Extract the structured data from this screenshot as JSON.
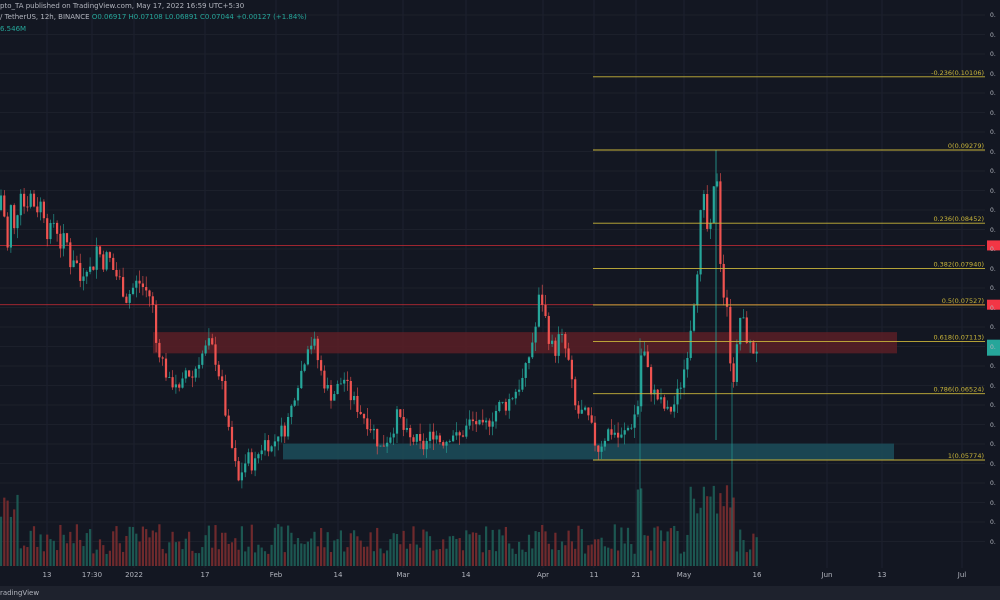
{
  "header": {
    "publish_line": "pto_TA published on TradingView.com, May 17, 2022 16:59 UTC+5:30",
    "symbol": "/ TetherUS, 12h, BINANCE",
    "ohlc": "O0.06917  H0.07108  L0.06891  C0.07044  +0.00127 (+1.84%)",
    "volume": "6.546M"
  },
  "footer": {
    "brand": "radingView"
  },
  "colors": {
    "background": "#131722",
    "up": "#26a69a",
    "down": "#ef5350",
    "fib": "#c9b53a",
    "resistance_line": "#b22833",
    "resistance_zone": "#5a1f26",
    "support_zone": "#1c4a58",
    "price_badge": "#26a69a",
    "red_badge": "#f23645"
  },
  "chart_data": {
    "type": "candlestick",
    "symbol": "TetherUS",
    "interval": "12h",
    "exchange": "BINANCE",
    "x_ticks": [
      "13",
      "17:30",
      "2022",
      "17",
      "Feb",
      "14",
      "Mar",
      "14",
      "Apr",
      "11",
      "21",
      "May",
      "16",
      "Jun",
      "13",
      "Jul"
    ],
    "fib_levels": [
      {
        "ratio": "-0.236",
        "value": 0.10106,
        "label": "-0.236(0.10106)"
      },
      {
        "ratio": "0",
        "value": 0.09279,
        "label": "0(0.09279)"
      },
      {
        "ratio": "0.236",
        "value": 0.08452,
        "label": "0.236(0.08452)"
      },
      {
        "ratio": "0.382",
        "value": 0.0794,
        "label": "0.382(0.07940)"
      },
      {
        "ratio": "0.5",
        "value": 0.07527,
        "label": "0.5(0.07527)"
      },
      {
        "ratio": "0.618",
        "value": 0.07113,
        "label": "0.618(0.07113)"
      },
      {
        "ratio": "0.786",
        "value": 0.06524,
        "label": "0.786(0.06524)"
      },
      {
        "ratio": "1",
        "value": 0.05774,
        "label": "1(0.05774)"
      }
    ],
    "resistance_lines": [
      0.082,
      0.0753
    ],
    "resistance_zone": [
      0.0698,
      0.0722
    ],
    "support_zone": [
      0.0578,
      0.0596
    ],
    "last_price": 0.07044,
    "y_tick_labels": [
      "0.",
      "0.",
      "0.",
      "0.",
      "0.",
      "0.",
      "0.",
      "0.",
      "0.",
      "0.",
      "0.",
      "0.",
      "0.",
      "0.",
      "0.",
      "0.",
      "0.",
      "0.",
      "0.",
      "0.",
      "0.",
      "0.",
      "0.",
      "0.",
      "0.",
      "0.",
      "0.",
      "0."
    ],
    "price_path": [
      [
        0,
        0.086
      ],
      [
        3,
        0.091
      ],
      [
        6,
        0.078
      ],
      [
        10,
        0.087
      ],
      [
        15,
        0.083
      ],
      [
        20,
        0.089
      ],
      [
        25,
        0.086
      ],
      [
        30,
        0.088
      ],
      [
        36,
        0.086
      ],
      [
        42,
        0.087
      ],
      [
        48,
        0.083
      ],
      [
        55,
        0.085
      ],
      [
        60,
        0.082
      ],
      [
        66,
        0.083
      ],
      [
        70,
        0.08
      ],
      [
        75,
        0.081
      ],
      [
        80,
        0.078
      ],
      [
        86,
        0.08
      ],
      [
        92,
        0.079
      ],
      [
        97,
        0.082
      ],
      [
        103,
        0.08
      ],
      [
        108,
        0.081
      ],
      [
        114,
        0.079
      ],
      [
        120,
        0.078
      ],
      [
        126,
        0.076
      ],
      [
        132,
        0.077
      ],
      [
        138,
        0.078
      ],
      [
        145,
        0.077
      ],
      [
        152,
        0.076
      ],
      [
        156,
        0.071
      ],
      [
        160,
        0.07
      ],
      [
        165,
        0.068
      ],
      [
        170,
        0.066
      ],
      [
        175,
        0.067
      ],
      [
        180,
        0.065
      ],
      [
        186,
        0.068
      ],
      [
        192,
        0.067
      ],
      [
        198,
        0.069
      ],
      [
        204,
        0.07
      ],
      [
        210,
        0.071
      ],
      [
        216,
        0.069
      ],
      [
        222,
        0.066
      ],
      [
        228,
        0.061
      ],
      [
        234,
        0.058
      ],
      [
        238,
        0.055
      ],
      [
        243,
        0.057
      ],
      [
        248,
        0.058
      ],
      [
        254,
        0.057
      ],
      [
        260,
        0.059
      ],
      [
        266,
        0.06
      ],
      [
        272,
        0.059
      ],
      [
        278,
        0.061
      ],
      [
        284,
        0.061
      ],
      [
        290,
        0.063
      ],
      [
        296,
        0.066
      ],
      [
        302,
        0.068
      ],
      [
        308,
        0.071
      ],
      [
        314,
        0.071
      ],
      [
        320,
        0.068
      ],
      [
        326,
        0.066
      ],
      [
        332,
        0.065
      ],
      [
        338,
        0.066
      ],
      [
        344,
        0.067
      ],
      [
        350,
        0.065
      ],
      [
        356,
        0.064
      ],
      [
        362,
        0.063
      ],
      [
        368,
        0.062
      ],
      [
        374,
        0.061
      ],
      [
        380,
        0.059
      ],
      [
        386,
        0.06
      ],
      [
        392,
        0.061
      ],
      [
        398,
        0.063
      ],
      [
        404,
        0.061
      ],
      [
        410,
        0.06
      ],
      [
        416,
        0.06
      ],
      [
        422,
        0.059
      ],
      [
        428,
        0.06
      ],
      [
        434,
        0.061
      ],
      [
        440,
        0.06
      ],
      [
        446,
        0.06
      ],
      [
        452,
        0.061
      ],
      [
        458,
        0.06
      ],
      [
        464,
        0.061
      ],
      [
        470,
        0.062
      ],
      [
        476,
        0.062
      ],
      [
        482,
        0.061
      ],
      [
        488,
        0.062
      ],
      [
        494,
        0.063
      ],
      [
        500,
        0.064
      ],
      [
        506,
        0.064
      ],
      [
        512,
        0.065
      ],
      [
        518,
        0.066
      ],
      [
        524,
        0.067
      ],
      [
        530,
        0.07
      ],
      [
        536,
        0.073
      ],
      [
        540,
        0.077
      ],
      [
        545,
        0.074
      ],
      [
        550,
        0.071
      ],
      [
        555,
        0.07
      ],
      [
        560,
        0.072
      ],
      [
        566,
        0.07
      ],
      [
        570,
        0.068
      ],
      [
        574,
        0.064
      ],
      [
        578,
        0.063
      ],
      [
        584,
        0.063
      ],
      [
        590,
        0.062
      ],
      [
        594,
        0.06
      ],
      [
        598,
        0.059
      ],
      [
        603,
        0.06
      ],
      [
        608,
        0.061
      ],
      [
        614,
        0.061
      ],
      [
        620,
        0.06
      ],
      [
        626,
        0.061
      ],
      [
        632,
        0.062
      ],
      [
        638,
        0.064
      ],
      [
        642,
        0.071
      ],
      [
        646,
        0.069
      ],
      [
        650,
        0.066
      ],
      [
        656,
        0.065
      ],
      [
        662,
        0.064
      ],
      [
        668,
        0.063
      ],
      [
        674,
        0.064
      ],
      [
        680,
        0.066
      ],
      [
        686,
        0.069
      ],
      [
        692,
        0.074
      ],
      [
        697,
        0.079
      ],
      [
        700,
        0.085
      ],
      [
        704,
        0.087
      ],
      [
        708,
        0.083
      ],
      [
        712,
        0.084
      ],
      [
        716,
        0.093
      ],
      [
        720,
        0.081
      ],
      [
        724,
        0.076
      ],
      [
        728,
        0.074
      ],
      [
        732,
        0.066
      ],
      [
        736,
        0.069
      ],
      [
        740,
        0.074
      ],
      [
        744,
        0.073
      ],
      [
        748,
        0.071
      ],
      [
        752,
        0.07
      ],
      [
        756,
        0.0704
      ]
    ]
  }
}
